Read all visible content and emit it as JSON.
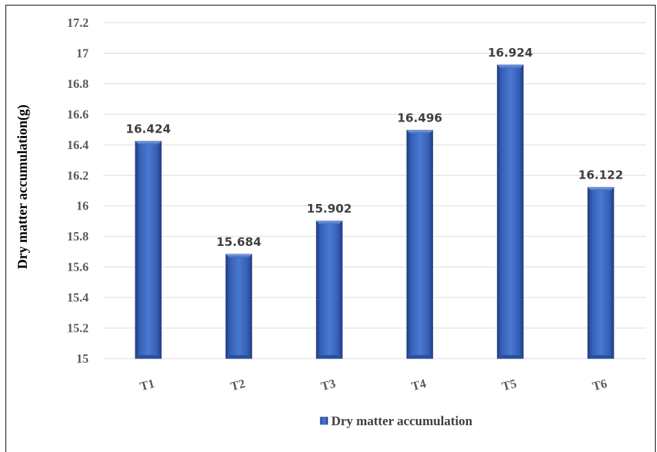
{
  "chart_data": {
    "type": "bar",
    "categories": [
      "T1",
      "T2",
      "T3",
      "T4",
      "T5",
      "T6"
    ],
    "series": [
      {
        "name": "Dry matter accumulation",
        "values": [
          16.424,
          15.684,
          15.902,
          16.496,
          16.924,
          16.122
        ],
        "color": "#4472c4"
      }
    ],
    "data_labels": [
      "16.424",
      "15.684",
      "15.902",
      "16.496",
      "16.924",
      "16.122"
    ],
    "ylabel": "Dry matter accumulation(g)",
    "xlabel": "",
    "ylim": [
      15,
      17.2
    ],
    "yticks": [
      "15",
      "15.2",
      "15.4",
      "15.6",
      "15.8",
      "16",
      "16.2",
      "16.4",
      "16.6",
      "16.8",
      "17",
      "17.2"
    ],
    "grid": true,
    "legend_position": "bottom"
  }
}
